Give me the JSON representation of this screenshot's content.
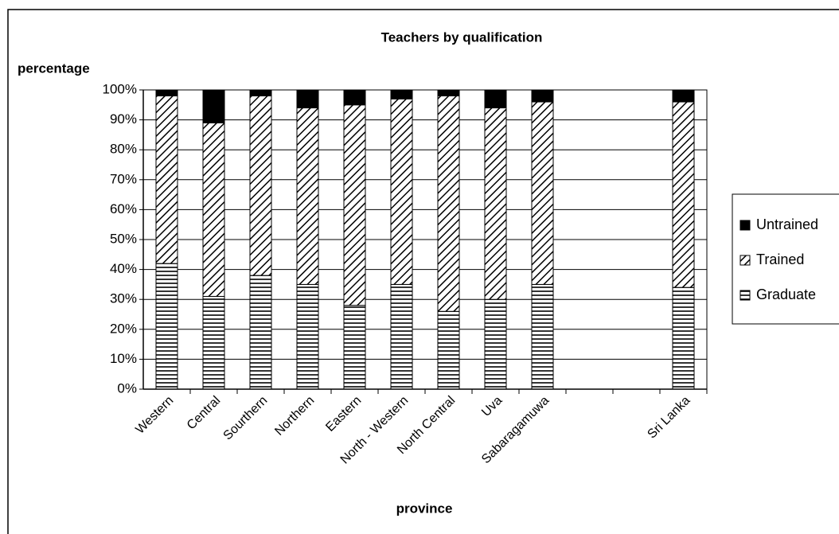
{
  "chart_data": {
    "type": "stacked-bar",
    "title": "Teachers by qualification",
    "y_label": "percentage",
    "x_label": "province",
    "categories": [
      "Western",
      "Central",
      "Sourthern",
      "Northern",
      "Eastern",
      "North - Western",
      "North Central",
      "Uva",
      "Sabaragamuwa",
      null,
      null,
      "Sri Lanka"
    ],
    "series": [
      {
        "name": "Graduate",
        "color": "#000000",
        "pattern": "horizontal",
        "values": [
          42,
          31,
          38,
          35,
          28,
          35,
          26,
          30,
          35,
          null,
          null,
          34
        ]
      },
      {
        "name": "Trained",
        "color": "#000000",
        "pattern": "diagonal",
        "values": [
          56,
          58,
          60,
          59,
          67,
          62,
          72,
          64,
          61,
          null,
          null,
          62
        ]
      },
      {
        "name": "Untrained",
        "color": "#000000",
        "pattern": "solid",
        "values": [
          2,
          11,
          2,
          6,
          5,
          3,
          2,
          6,
          4,
          null,
          null,
          4
        ]
      }
    ],
    "ylim": [
      0,
      100
    ],
    "yticks": [
      {
        "value": 0,
        "label": "0%"
      },
      {
        "value": 10,
        "label": "10%"
      },
      {
        "value": 20,
        "label": "20%"
      },
      {
        "value": 30,
        "label": "30%"
      },
      {
        "value": 40,
        "label": "40%"
      },
      {
        "value": 50,
        "label": "50%"
      },
      {
        "value": 60,
        "label": "60%"
      },
      {
        "value": 70,
        "label": "70%"
      },
      {
        "value": 80,
        "label": "80%"
      },
      {
        "value": 90,
        "label": "90%"
      },
      {
        "value": 100,
        "label": "100%"
      }
    ],
    "grid": true,
    "legend": "right"
  }
}
